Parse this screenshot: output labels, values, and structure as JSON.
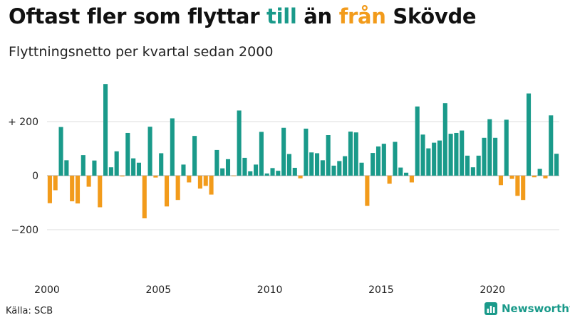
{
  "title": {
    "part1": "Oftast fler som flyttar ",
    "part2": "till",
    "part3": " än ",
    "part4": "från",
    "part5": " Skövde"
  },
  "subtitle": "Flyttningsnetto per kvartal sedan 2000",
  "source": "Källa: SCB",
  "logo_text": "Newsworthy",
  "colors": {
    "positive": "#1a9a8a",
    "negative": "#f29b1b",
    "grid": "#dddddd",
    "baseline": "#aaaaaa"
  },
  "chart_data": {
    "type": "bar",
    "x_start": 2000,
    "x_end": 2023.75,
    "ylim": [
      -300,
      350
    ],
    "y_ticks": [
      {
        "value": 200,
        "label": "+ 200"
      },
      {
        "value": 0,
        "label": "0"
      },
      {
        "value": -200,
        "label": "−200"
      }
    ],
    "x_ticks": [
      {
        "value": 2000,
        "label": "2000"
      },
      {
        "value": 2005,
        "label": "2005"
      },
      {
        "value": 2010,
        "label": "2010"
      },
      {
        "value": 2015,
        "label": "2015"
      },
      {
        "value": 2020,
        "label": "2020"
      }
    ],
    "values": [
      -102,
      -54,
      180,
      57,
      -95,
      -103,
      76,
      -41,
      56,
      -117,
      339,
      31,
      90,
      -3,
      158,
      64,
      48,
      -158,
      181,
      -7,
      83,
      -114,
      212,
      -90,
      41,
      -25,
      147,
      -48,
      -38,
      -70,
      95,
      27,
      61,
      -2,
      241,
      66,
      16,
      41,
      162,
      8,
      28,
      18,
      177,
      80,
      29,
      -10,
      174,
      86,
      83,
      57,
      150,
      37,
      54,
      72,
      163,
      160,
      48,
      -112,
      84,
      108,
      118,
      -30,
      125,
      30,
      11,
      -25,
      256,
      152,
      101,
      122,
      130,
      268,
      155,
      158,
      167,
      74,
      31,
      74,
      140,
      209,
      140,
      -35,
      207,
      -12,
      -75,
      -90,
      304,
      -6,
      25,
      -10,
      223,
      81
    ]
  }
}
